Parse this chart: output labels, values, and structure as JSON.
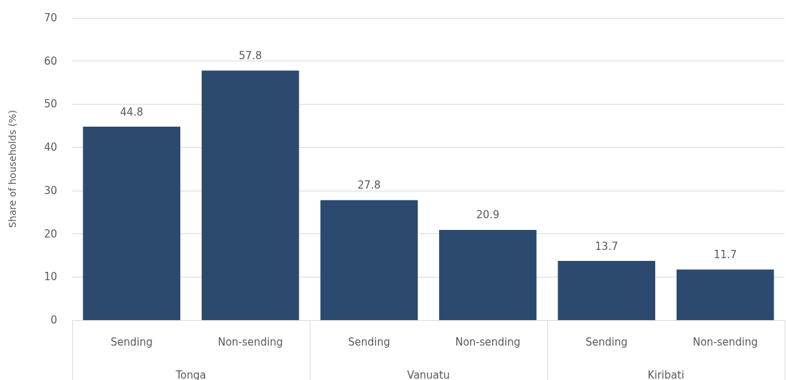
{
  "chart_data": {
    "type": "bar",
    "ylabel": "Share of households (%)",
    "categories": [
      "Sending",
      "Non-sending",
      "Sending",
      "Non-sending",
      "Sending",
      "Non-sending"
    ],
    "annotations": [
      "Tonga",
      "Vanuatu",
      "Kiribati"
    ],
    "values": [
      44.8,
      57.8,
      27.8,
      20.9,
      13.7,
      11.7
    ],
    "color": "#2c4a6f",
    "ylim": [
      0,
      70
    ],
    "yticks": [
      0,
      10,
      20,
      30,
      40,
      50,
      60,
      70
    ],
    "grid": "y",
    "data_labels": true
  }
}
